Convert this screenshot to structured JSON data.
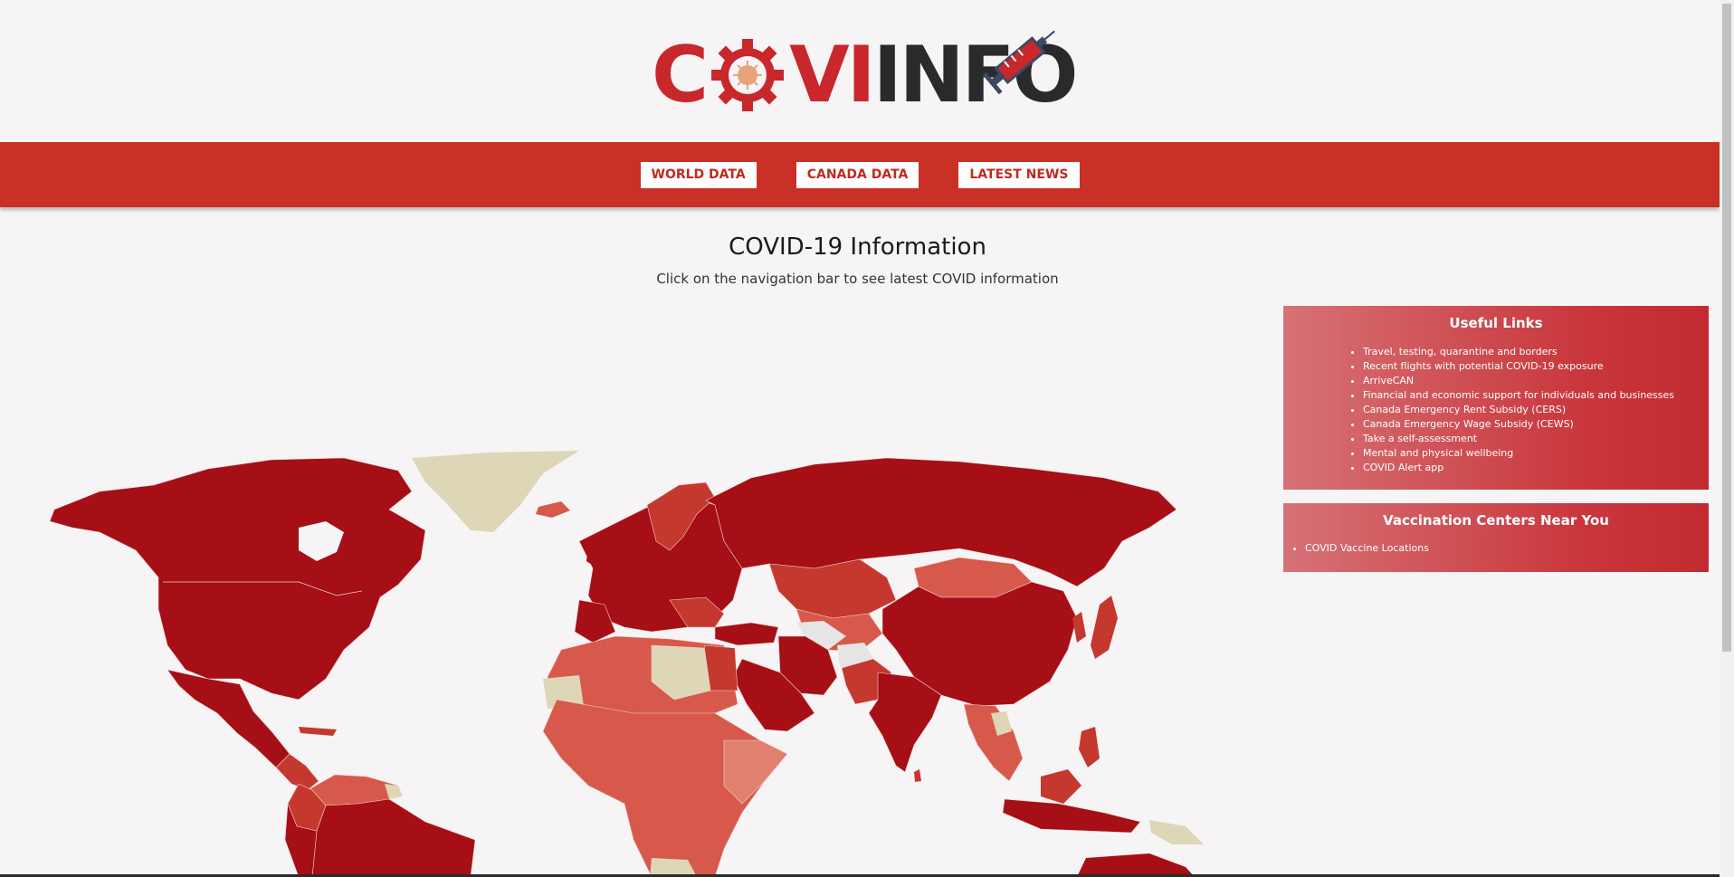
{
  "header": {
    "logo": {
      "text_part1": "C",
      "text_part2": "VI",
      "text_part3": "INFO",
      "brand_red": "#c8272c",
      "brand_dark": "#2a2a2c",
      "icons": [
        "gear-virus-icon",
        "syringe-icon"
      ]
    }
  },
  "navbar": {
    "color": "#c93026",
    "items": [
      {
        "label": "WORLD DATA"
      },
      {
        "label": "CANADA DATA"
      },
      {
        "label": "LATEST NEWS"
      }
    ]
  },
  "main": {
    "title": "COVID-19 Information",
    "subtitle": "Click on the navigation bar to see latest COVID information"
  },
  "map": {
    "colors": {
      "highest": "#a50f15",
      "high": "#c4382e",
      "medium": "#d7594b",
      "low": "#e1806f",
      "no_data": "#ddd6b7",
      "unknown": "#e5e5e5"
    }
  },
  "useful_links": {
    "title": "Useful Links",
    "items": [
      "Travel, testing, quarantine and borders",
      "Recent flights with potential COVID-19 exposure",
      "ArriveCAN",
      "Financial and economic support for individuals and businesses",
      "Canada Emergency Rent Subsidy (CERS)",
      "Canada Emergency Wage Subsidy (CEWS)",
      "Take a self-assessment",
      "Mental and physical wellbeing",
      "COVID Alert app"
    ]
  },
  "vaccination": {
    "title": "Vaccination Centers Near You",
    "items": [
      "COVID Vaccine Locations"
    ]
  }
}
